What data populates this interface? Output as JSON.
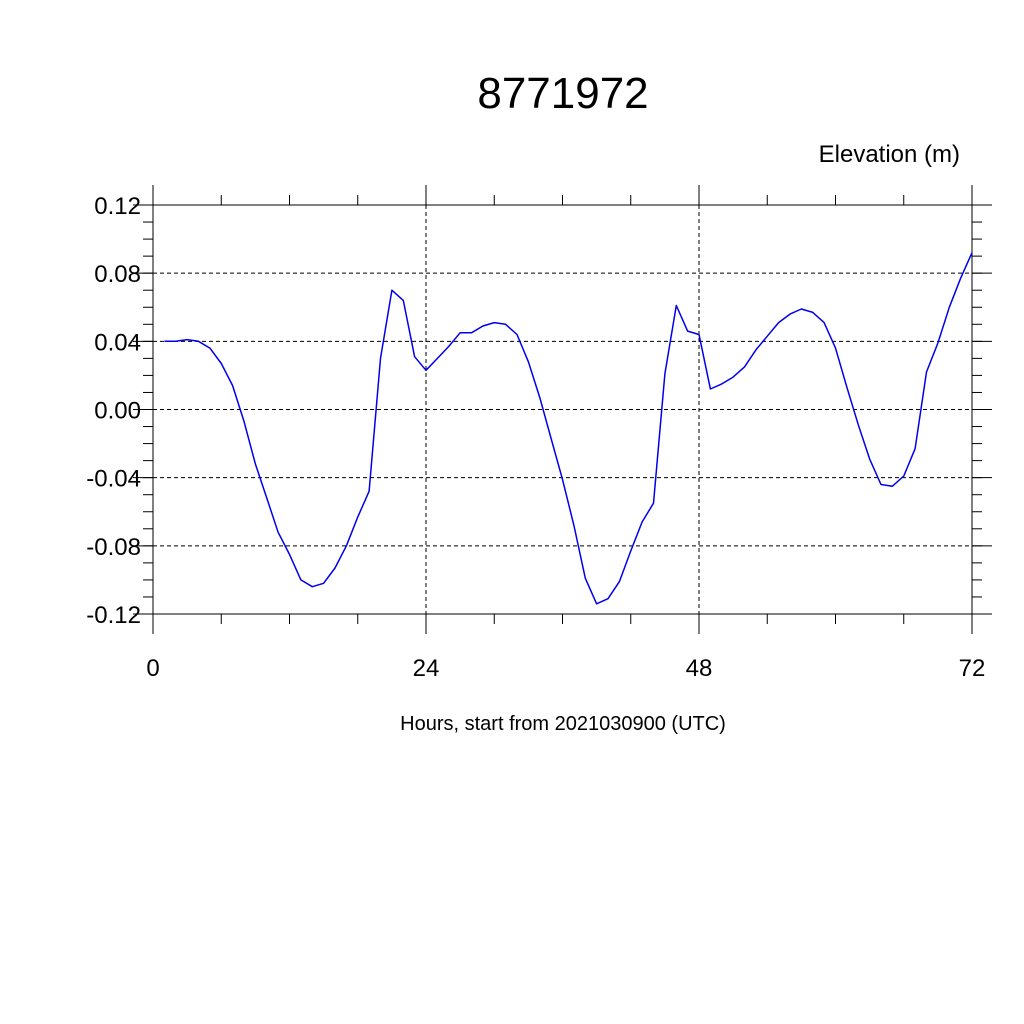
{
  "chart_data": {
    "type": "line",
    "title": "8771972",
    "ylabel": "Elevation (m)",
    "xlabel": "Hours, start from 2021030900 (UTC)",
    "xlim": [
      0,
      72
    ],
    "ylim": [
      -0.12,
      0.12
    ],
    "x_ticks": [
      0,
      24,
      48,
      72
    ],
    "x_tick_labels": [
      "0",
      "24",
      "48",
      "72"
    ],
    "y_ticks": [
      -0.12,
      -0.08,
      -0.04,
      0.0,
      0.04,
      0.08,
      0.12
    ],
    "y_tick_labels": [
      "-0.12",
      "-0.08",
      "-0.04",
      "0.00",
      "0.04",
      "0.08",
      "0.12"
    ],
    "grid": true,
    "series": [
      {
        "color": "#0000ee",
        "x": [
          1,
          2,
          3,
          4,
          5,
          6,
          7,
          8,
          9,
          10,
          11,
          12,
          13,
          14,
          15,
          16,
          17,
          18,
          19,
          20,
          21,
          22,
          23,
          24,
          25,
          26,
          27,
          28,
          29,
          30,
          31,
          32,
          33,
          34,
          35,
          36,
          37,
          38,
          39,
          40,
          41,
          42,
          43,
          44,
          45,
          46,
          47,
          48,
          49,
          50,
          51,
          52,
          53,
          54,
          55,
          56,
          57,
          58,
          59,
          60,
          61,
          62,
          63,
          64,
          65,
          66,
          67,
          68,
          69,
          70,
          71,
          72
        ],
        "y": [
          0.04,
          0.04,
          0.041,
          0.04,
          0.036,
          0.027,
          0.014,
          -0.007,
          -0.032,
          -0.052,
          -0.072,
          -0.085,
          -0.1,
          -0.104,
          -0.102,
          -0.093,
          -0.08,
          -0.063,
          -0.048,
          0.03,
          0.07,
          0.064,
          0.031,
          0.023,
          0.03,
          0.037,
          0.045,
          0.045,
          0.049,
          0.051,
          0.05,
          0.044,
          0.028,
          0.007,
          -0.017,
          -0.041,
          -0.068,
          -0.099,
          -0.114,
          -0.111,
          -0.101,
          -0.083,
          -0.066,
          -0.055,
          0.021,
          0.061,
          0.046,
          0.044,
          0.012,
          0.015,
          0.019,
          0.025,
          0.035,
          0.043,
          0.051,
          0.056,
          0.059,
          0.057,
          0.051,
          0.036,
          0.013,
          -0.009,
          -0.029,
          -0.044,
          -0.045,
          -0.039,
          -0.023,
          0.022,
          0.039,
          0.06,
          0.077,
          0.092
        ]
      }
    ]
  }
}
